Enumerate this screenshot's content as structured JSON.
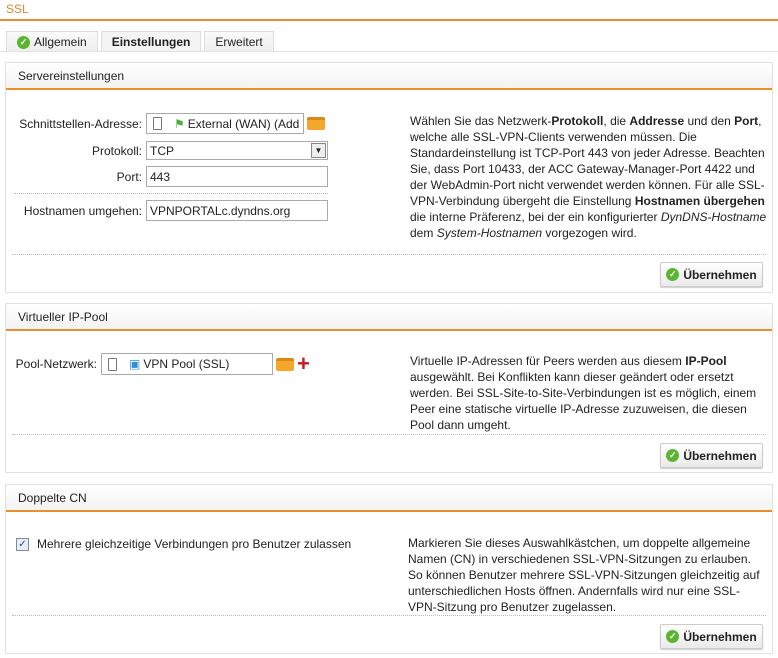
{
  "page": {
    "title": "SSL"
  },
  "tabs": [
    {
      "label": "Allgemein",
      "icon": "check-circle-icon"
    },
    {
      "label": "Einstellungen",
      "active": true
    },
    {
      "label": "Erweitert"
    }
  ],
  "colors": {
    "accent": "#e8912c",
    "ok": "#5cb531"
  },
  "server": {
    "heading": "Servereinstellungen",
    "interface_label": "Schnittstellen-Adresse:",
    "interface_value": "External (WAN) (Add",
    "protocol_label": "Protokoll:",
    "protocol_value": "TCP",
    "port_label": "Port:",
    "port_value": "443",
    "hostname_label": "Hostnamen umgehen:",
    "hostname_value": "VPNPORTALc.dyndns.org",
    "description": [
      [
        "Wählen Sie das Netzwerk-",
        ""
      ],
      [
        "Protokoll",
        "b"
      ],
      [
        ", die ",
        ""
      ],
      [
        "Addresse",
        "b"
      ],
      [
        " und den ",
        ""
      ],
      [
        "Port",
        "b"
      ],
      [
        ", welche alle SSL-VPN-Clients verwenden müssen. Die Standardeinstellung ist TCP-Port 443 von jeder Adresse. Beachten Sie, dass Port 10433, der ACC Gateway-Manager-Port 4422 und der WebAdmin-Port nicht verwendet werden können. Für alle SSL-VPN-Verbindung übergeht die Einstellung ",
        ""
      ],
      [
        "Hostnamen übergehen",
        "b"
      ],
      [
        " die interne Präferenz, bei der ein konfigurierter ",
        ""
      ],
      [
        "DynDNS-Hostname",
        "i"
      ],
      [
        " dem ",
        ""
      ],
      [
        "System-Hostnamen",
        "i"
      ],
      [
        " vorgezogen wird.",
        ""
      ]
    ],
    "apply": "Übernehmen"
  },
  "pool": {
    "heading": "Virtueller IP-Pool",
    "network_label": "Pool-Netzwerk:",
    "network_value": "VPN Pool (SSL)",
    "description": [
      [
        "Virtuelle IP-Adressen für Peers werden aus diesem ",
        ""
      ],
      [
        "IP-Pool",
        "b"
      ],
      [
        " ausgewählt. Bei Konflikten kann dieser geändert oder ersetzt werden. Bei SSL-Site-to-Site-Verbindungen ist es möglich, einem Peer eine statische virtuelle IP-Adresse zuzuweisen, die diesen Pool dann umgeht.",
        ""
      ]
    ],
    "apply": "Übernehmen"
  },
  "cn": {
    "heading": "Doppelte CN",
    "checkbox_label": "Mehrere gleichzeitige Verbindungen pro Benutzer zulassen",
    "checked": true,
    "description": [
      [
        "Markieren Sie dieses Auswahlkästchen, um doppelte allgemeine Namen (CN) in verschiedenen SSL-VPN-Sitzungen zu erlauben. So können Benutzer mehrere SSL-VPN-Sitzungen gleichzeitig auf unterschiedlichen Hosts öffnen. Andernfalls wird nur eine SSL-VPN-Sitzung pro Benutzer zugelassen.",
        ""
      ]
    ],
    "apply": "Übernehmen"
  }
}
